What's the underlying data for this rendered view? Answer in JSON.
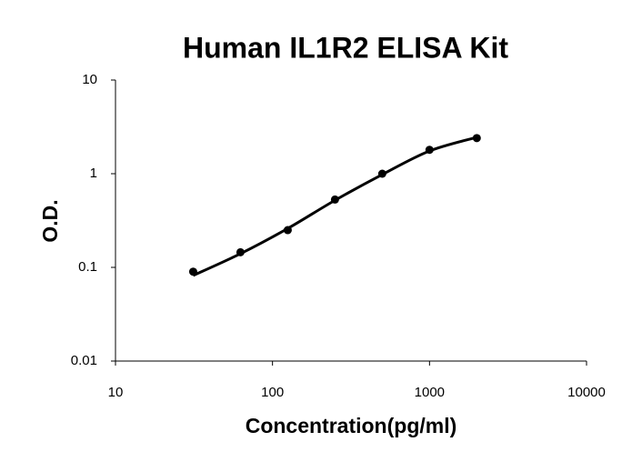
{
  "chart_data": {
    "type": "scatter",
    "title": "Human IL1R2 ELISA Kit",
    "x_label": "Concentration(pg/ml)",
    "y_label": "O.D.",
    "x": [
      31.25,
      62.5,
      125,
      250,
      500,
      1000,
      2000
    ],
    "series": [
      {
        "color": "#000000",
        "values": [
          0.09,
          0.145,
          0.25,
          0.53,
          1.0,
          1.8,
          2.4
        ]
      }
    ],
    "fit": {
      "color": "#000000",
      "values": [
        0.082,
        0.14,
        0.26,
        0.52,
        0.98,
        1.75,
        2.45
      ]
    },
    "xscale": "log",
    "yscale": "log",
    "xlim": [
      10,
      10000
    ],
    "xticks": [
      10,
      100,
      1000,
      10000
    ],
    "ylim": [
      0.01,
      10
    ],
    "yticks": [
      0.01,
      0.1,
      1,
      10
    ],
    "grid": false
  }
}
